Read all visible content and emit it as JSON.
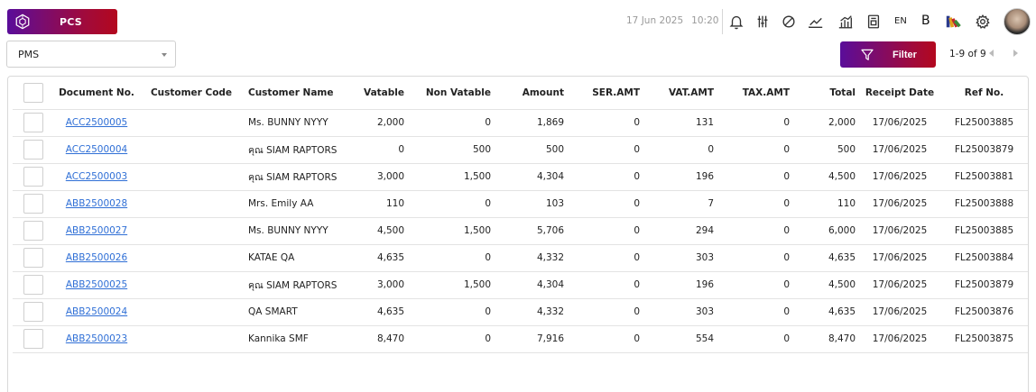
{
  "app": {
    "brand_label": "PCS",
    "date": "17 Jun 2025",
    "time": "10:20",
    "language": "EN",
    "bold_label": "B"
  },
  "icons": [
    "hexagon-logo-icon",
    "bell-icon",
    "sliders-icon",
    "pie-icon",
    "line-chart-icon",
    "bar-chart-icon",
    "report-icon",
    "palette-icon",
    "gear-icon",
    "filter-icon"
  ],
  "colors": {
    "brand_start": "#5a0d9a",
    "brand_end": "#b3081e",
    "link": "#2f6fd6"
  },
  "toolbar": {
    "property_select": "PMS",
    "filter_label": "Filter",
    "pagination": "1-9 of 9"
  },
  "table": {
    "headers": {
      "doc_no": "Document No.",
      "customer_code": "Customer Code",
      "customer_name": "Customer Name",
      "vatable": "Vatable",
      "non_vatable": "Non Vatable",
      "amount": "Amount",
      "ser_amt": "SER.AMT",
      "vat_amt": "VAT.AMT",
      "tax_amt": "TAX.AMT",
      "total": "Total",
      "receipt_date": "Receipt Date",
      "ref_no": "Ref No."
    },
    "rows": [
      {
        "doc_no": "ACC2500005",
        "customer_code": "",
        "customer_name": "Ms. BUNNY NYYY",
        "vatable": "2,000",
        "non_vatable": "0",
        "amount": "1,869",
        "ser_amt": "0",
        "vat_amt": "131",
        "tax_amt": "0",
        "total": "2,000",
        "receipt_date": "17/06/2025",
        "ref_no": "FL25003885"
      },
      {
        "doc_no": "ACC2500004",
        "customer_code": "",
        "customer_name": "คุณ SIAM RAPTORS",
        "vatable": "0",
        "non_vatable": "500",
        "amount": "500",
        "ser_amt": "0",
        "vat_amt": "0",
        "tax_amt": "0",
        "total": "500",
        "receipt_date": "17/06/2025",
        "ref_no": "FL25003879"
      },
      {
        "doc_no": "ACC2500003",
        "customer_code": "",
        "customer_name": "คุณ SIAM RAPTORS",
        "vatable": "3,000",
        "non_vatable": "1,500",
        "amount": "4,304",
        "ser_amt": "0",
        "vat_amt": "196",
        "tax_amt": "0",
        "total": "4,500",
        "receipt_date": "17/06/2025",
        "ref_no": "FL25003881"
      },
      {
        "doc_no": "ABB2500028",
        "customer_code": "",
        "customer_name": "Mrs. Emily AA",
        "vatable": "110",
        "non_vatable": "0",
        "amount": "103",
        "ser_amt": "0",
        "vat_amt": "7",
        "tax_amt": "0",
        "total": "110",
        "receipt_date": "17/06/2025",
        "ref_no": "FL25003888"
      },
      {
        "doc_no": "ABB2500027",
        "customer_code": "",
        "customer_name": "Ms. BUNNY NYYY",
        "vatable": "4,500",
        "non_vatable": "1,500",
        "amount": "5,706",
        "ser_amt": "0",
        "vat_amt": "294",
        "tax_amt": "0",
        "total": "6,000",
        "receipt_date": "17/06/2025",
        "ref_no": "FL25003885"
      },
      {
        "doc_no": "ABB2500026",
        "customer_code": "",
        "customer_name": "KATAE QA",
        "vatable": "4,635",
        "non_vatable": "0",
        "amount": "4,332",
        "ser_amt": "0",
        "vat_amt": "303",
        "tax_amt": "0",
        "total": "4,635",
        "receipt_date": "17/06/2025",
        "ref_no": "FL25003884"
      },
      {
        "doc_no": "ABB2500025",
        "customer_code": "",
        "customer_name": "คุณ SIAM RAPTORS",
        "vatable": "3,000",
        "non_vatable": "1,500",
        "amount": "4,304",
        "ser_amt": "0",
        "vat_amt": "196",
        "tax_amt": "0",
        "total": "4,500",
        "receipt_date": "17/06/2025",
        "ref_no": "FL25003879"
      },
      {
        "doc_no": "ABB2500024",
        "customer_code": "",
        "customer_name": "QA SMART",
        "vatable": "4,635",
        "non_vatable": "0",
        "amount": "4,332",
        "ser_amt": "0",
        "vat_amt": "303",
        "tax_amt": "0",
        "total": "4,635",
        "receipt_date": "17/06/2025",
        "ref_no": "FL25003876"
      },
      {
        "doc_no": "ABB2500023",
        "customer_code": "",
        "customer_name": "Kannika SMF",
        "vatable": "8,470",
        "non_vatable": "0",
        "amount": "7,916",
        "ser_amt": "0",
        "vat_amt": "554",
        "tax_amt": "0",
        "total": "8,470",
        "receipt_date": "17/06/2025",
        "ref_no": "FL25003875"
      }
    ]
  }
}
